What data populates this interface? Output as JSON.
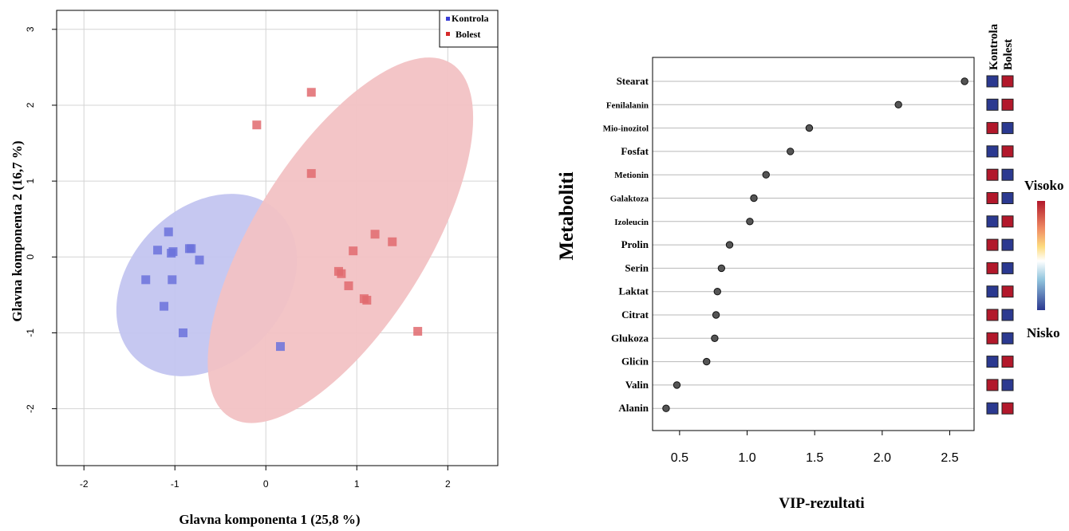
{
  "chart_data": [
    {
      "type": "scatter",
      "xlabel": "Glavna komponenta 1 (25,8 %)",
      "ylabel": "Glavna komponenta 2 (16,7 %)",
      "xlim": [
        -2.3,
        2.55
      ],
      "ylim": [
        -2.75,
        3.25
      ],
      "x_ticks": [
        "-2",
        "-1",
        "0",
        "1",
        "2"
      ],
      "y_ticks": [
        "-2",
        "-1",
        "0",
        "1",
        "2",
        "3"
      ],
      "grid": true,
      "legend_position": "top-right",
      "series": [
        {
          "name": "Kontrola",
          "color": "#6b72dc",
          "ellipse": {
            "center": [
              -0.65,
              -0.37
            ],
            "axes": [
              0.85,
              1.35
            ],
            "angle_deg": 44
          },
          "points": [
            [
              -1.07,
              0.33
            ],
            [
              -1.19,
              0.09
            ],
            [
              -0.84,
              0.11
            ],
            [
              -0.82,
              0.11
            ],
            [
              -1.02,
              0.07
            ],
            [
              -1.04,
              0.05
            ],
            [
              -0.73,
              -0.04
            ],
            [
              -1.32,
              -0.3
            ],
            [
              -1.03,
              -0.3
            ],
            [
              -1.12,
              -0.65
            ],
            [
              -0.91,
              -1.0
            ],
            [
              0.16,
              -1.18
            ]
          ]
        },
        {
          "name": "Bolest",
          "color": "#e06a6e",
          "ellipse": {
            "center": [
              0.82,
              0.22
            ],
            "axes": [
              0.95,
              2.75
            ],
            "angle_deg": 32
          },
          "points": [
            [
              0.5,
              2.17
            ],
            [
              -0.1,
              1.74
            ],
            [
              0.5,
              1.1
            ],
            [
              1.2,
              0.3
            ],
            [
              1.39,
              0.2
            ],
            [
              0.96,
              0.08
            ],
            [
              0.8,
              -0.19
            ],
            [
              0.83,
              -0.22
            ],
            [
              0.91,
              -0.38
            ],
            [
              1.08,
              -0.55
            ],
            [
              1.11,
              -0.57
            ],
            [
              1.67,
              -0.98
            ]
          ]
        }
      ]
    },
    {
      "type": "scatter",
      "subtype": "dot-plot",
      "xlabel": "VIP-rezultati",
      "ylabel": "Metaboliti",
      "xlim": [
        0.3,
        2.68
      ],
      "x_ticks": [
        "0.5",
        "1.0",
        "1.5",
        "2.0",
        "2.5"
      ],
      "heatmap_columns": [
        "Kontrola",
        "Bolest"
      ],
      "colorbar": {
        "high_label": "Visoko",
        "low_label": "Nisko",
        "high_color": "#b2182b",
        "low_color": "#2b3990"
      },
      "categories": [
        "Stearat",
        "Fenilalanin",
        "Mio-inozitol",
        "Fosfat",
        "Metionin",
        "Galaktoza",
        "Izoleucin",
        "Prolin",
        "Serin",
        "Laktat",
        "Citrat",
        "Glukoza",
        "Glicin",
        "Valin",
        "Alanin"
      ],
      "values": [
        2.61,
        2.12,
        1.46,
        1.32,
        1.14,
        1.05,
        1.02,
        0.87,
        0.81,
        0.78,
        0.77,
        0.76,
        0.7,
        0.48,
        0.4
      ],
      "heatmap": [
        [
          "low",
          "high"
        ],
        [
          "low",
          "high"
        ],
        [
          "high",
          "low"
        ],
        [
          "low",
          "high"
        ],
        [
          "high",
          "low"
        ],
        [
          "high",
          "low"
        ],
        [
          "low",
          "high"
        ],
        [
          "high",
          "low"
        ],
        [
          "high",
          "low"
        ],
        [
          "low",
          "high"
        ],
        [
          "high",
          "low"
        ],
        [
          "high",
          "low"
        ],
        [
          "low",
          "high"
        ],
        [
          "high",
          "low"
        ],
        [
          "low",
          "high"
        ]
      ]
    }
  ]
}
